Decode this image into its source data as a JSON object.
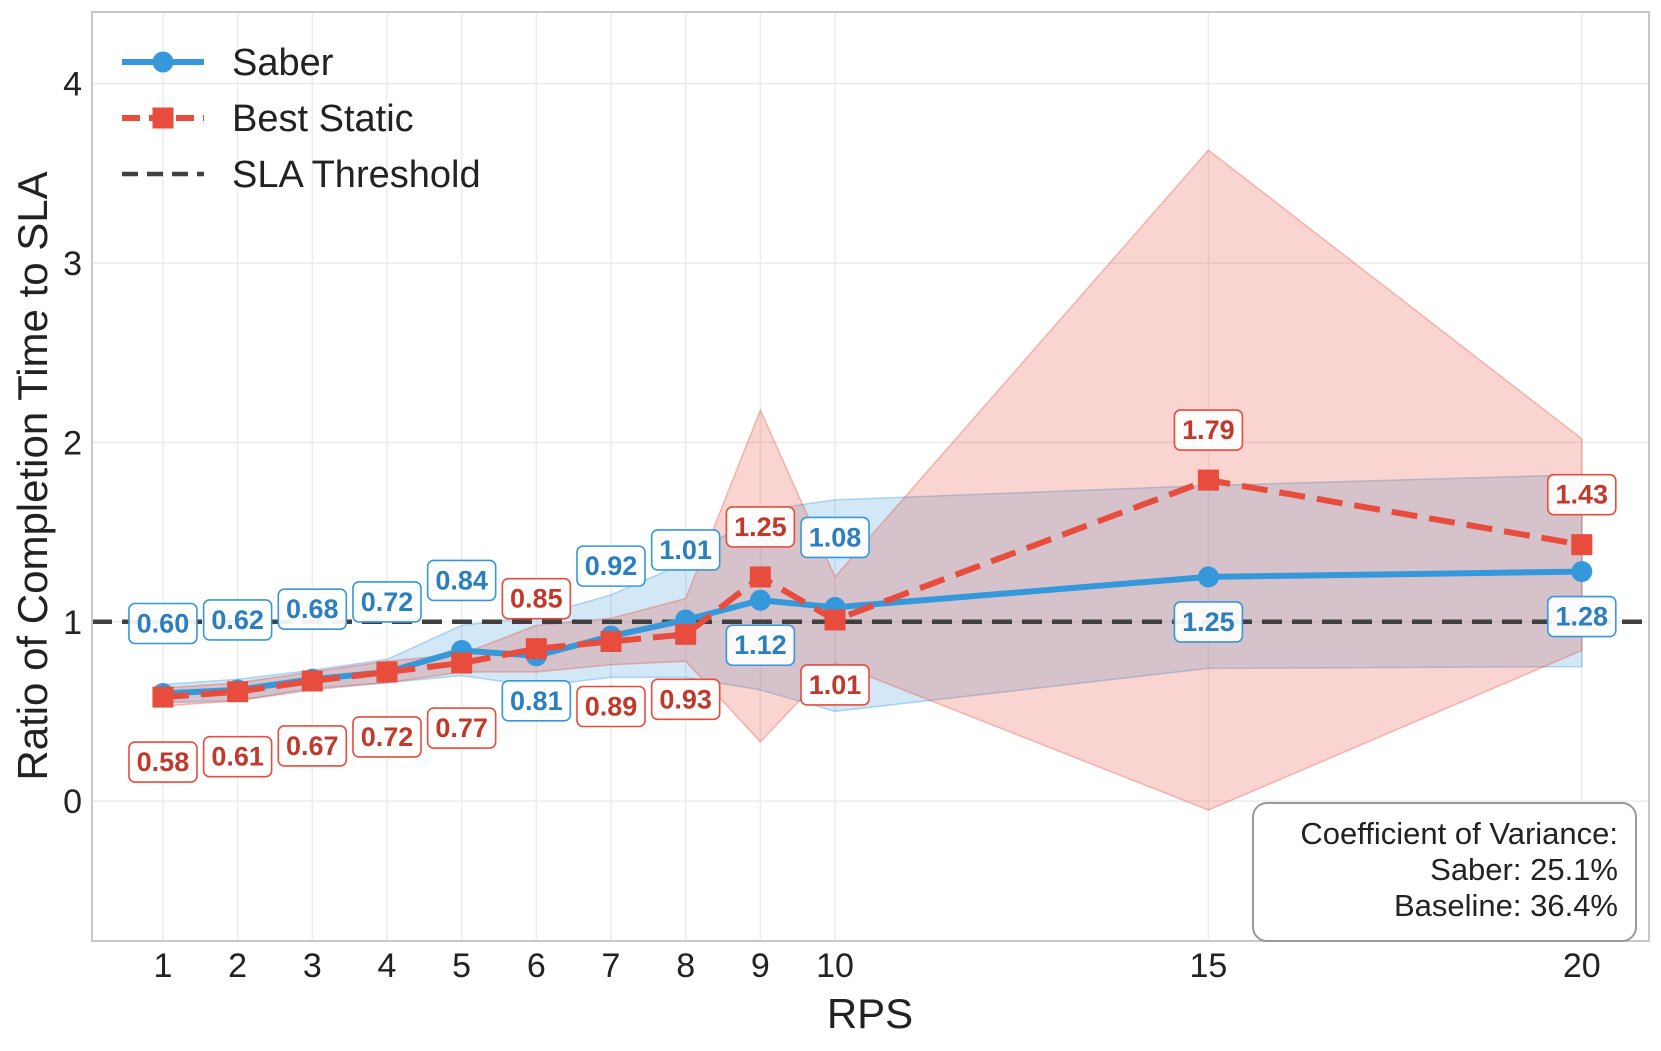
{
  "chart_data": {
    "type": "line",
    "xlabel": "RPS",
    "ylabel": "Ratio of Completion Time to SLA",
    "x": [
      1,
      2,
      3,
      4,
      5,
      6,
      7,
      8,
      9,
      10,
      15,
      20
    ],
    "x_tick_labels": [
      "1",
      "2",
      "3",
      "4",
      "5",
      "6",
      "7",
      "8",
      "9",
      "10",
      "15",
      "20"
    ],
    "xlim": [
      0.05,
      20.9
    ],
    "ylim": [
      -0.78,
      4.4
    ],
    "y_ticks": [
      0,
      1,
      2,
      3,
      4
    ],
    "y_tick_labels": [
      "0",
      "1",
      "2",
      "3",
      "4"
    ],
    "grid": true,
    "legend_position": "top-left",
    "series": [
      {
        "name": "Saber",
        "color": "#3498db",
        "line_style": "solid",
        "marker": "circle",
        "values": [
          0.6,
          0.62,
          0.68,
          0.72,
          0.84,
          0.81,
          0.92,
          1.01,
          1.12,
          1.08,
          1.25,
          1.28
        ],
        "value_labels": [
          "0.60",
          "0.62",
          "0.68",
          "0.72",
          "0.84",
          "0.81",
          "0.92",
          "1.01",
          "1.12",
          "1.08",
          "1.25",
          "1.28"
        ],
        "label_positions": [
          "above",
          "above",
          "above",
          "above",
          "above",
          "below",
          "above",
          "above",
          "below",
          "above",
          "below",
          "below"
        ],
        "band_upper": [
          0.65,
          0.68,
          0.73,
          0.79,
          0.98,
          1.03,
          1.15,
          1.33,
          1.62,
          1.68,
          1.76,
          1.82
        ],
        "band_lower": [
          0.55,
          0.56,
          0.63,
          0.66,
          0.7,
          0.64,
          0.69,
          0.69,
          0.62,
          0.5,
          0.74,
          0.75
        ]
      },
      {
        "name": "Best Static",
        "color": "#e74c3c",
        "line_style": "dashed",
        "marker": "square",
        "values": [
          0.58,
          0.61,
          0.67,
          0.72,
          0.77,
          0.85,
          0.89,
          0.93,
          1.25,
          1.01,
          1.79,
          1.43
        ],
        "value_labels": [
          "0.58",
          "0.61",
          "0.67",
          "0.72",
          "0.77",
          "0.85",
          "0.89",
          "0.93",
          "1.25",
          "1.01",
          "1.79",
          "1.43"
        ],
        "label_positions": [
          "below",
          "below",
          "below",
          "below",
          "below",
          "above",
          "below",
          "below",
          "above",
          "below",
          "above",
          "above"
        ],
        "band_upper": [
          0.63,
          0.66,
          0.72,
          0.78,
          0.82,
          0.98,
          1.02,
          1.13,
          2.18,
          1.25,
          3.63,
          2.02
        ],
        "band_lower": [
          0.53,
          0.56,
          0.62,
          0.66,
          0.72,
          0.72,
          0.76,
          0.78,
          0.33,
          0.77,
          -0.05,
          0.84
        ]
      },
      {
        "name": "SLA Threshold",
        "color": "#404040",
        "line_style": "dashed",
        "marker": "none",
        "y": 1.0
      }
    ],
    "annotation": {
      "lines": [
        "Coefficient of Variance:",
        "Saber: 25.1%",
        "Baseline: 36.4%"
      ],
      "position": "bottom-right"
    }
  }
}
